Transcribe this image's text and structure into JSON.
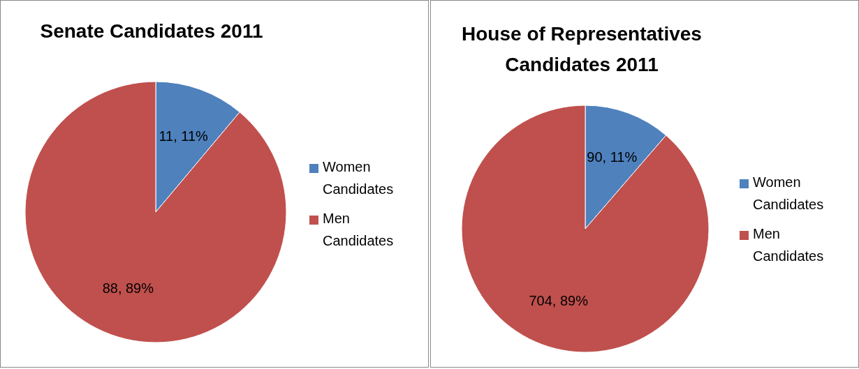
{
  "chart_data": [
    {
      "type": "pie",
      "title": "Senate Candidates 2011",
      "categories": [
        "Women Candidates",
        "Men Candidates"
      ],
      "values": [
        11,
        88
      ],
      "colors": [
        "#4f81bd",
        "#c0504d"
      ],
      "value_labels": [
        "11, 11%",
        "88, 89%"
      ],
      "legend": "right"
    },
    {
      "type": "pie",
      "title": "House of Representatives Candidates 2011",
      "categories": [
        "Women Candidates",
        "Men Candidates"
      ],
      "values": [
        90,
        704
      ],
      "colors": [
        "#4f81bd",
        "#c0504d"
      ],
      "value_labels": [
        "90, 11%",
        "704, 89%"
      ],
      "legend": "right"
    }
  ]
}
